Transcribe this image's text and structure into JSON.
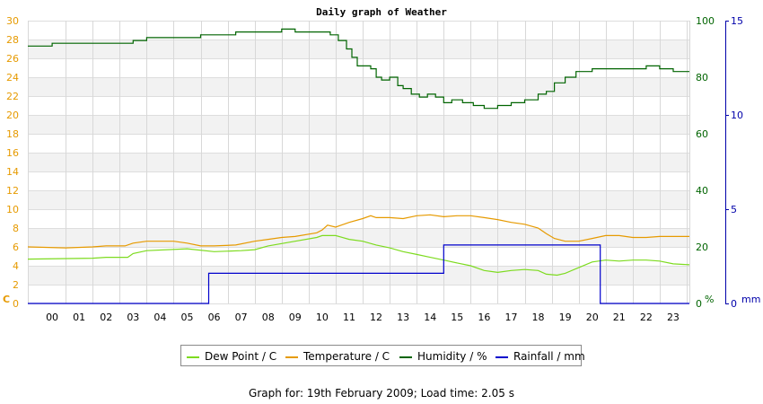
{
  "chart_data": {
    "type": "line",
    "title": "Daily graph of Weather",
    "x_axis": {
      "label": "",
      "range": [
        -0.9,
        23.6
      ],
      "ticks": [
        "00",
        "01",
        "02",
        "03",
        "04",
        "05",
        "06",
        "07",
        "08",
        "09",
        "10",
        "11",
        "12",
        "13",
        "14",
        "15",
        "16",
        "17",
        "18",
        "19",
        "20",
        "21",
        "22",
        "23"
      ]
    },
    "y_axes": [
      {
        "id": "temp",
        "position": "left-outer",
        "unit_label": "C",
        "range": [
          0,
          30
        ],
        "ticks": [
          "0",
          "2",
          "4",
          "6",
          "8",
          "10",
          "12",
          "14",
          "16",
          "18",
          "20",
          "22",
          "24",
          "26",
          "28",
          "30"
        ],
        "color": "#e69a00"
      },
      {
        "id": "humidity",
        "position": "right-inner",
        "unit_label": "%",
        "range": [
          0,
          100
        ],
        "ticks": [
          "0",
          "20",
          "40",
          "60",
          "80",
          "100"
        ],
        "color": "#006400"
      },
      {
        "id": "rain",
        "position": "right-outer",
        "unit_label": "mm",
        "range": [
          0,
          15
        ],
        "ticks": [
          "0",
          "5",
          "10",
          "15"
        ],
        "color": "#0000aa"
      }
    ],
    "grid": true,
    "legend_placement": "bottom",
    "series": [
      {
        "name": "Dew Point / C",
        "axis": "temp",
        "color": "#7ddb1f",
        "step": false,
        "x": [
          -0.9,
          1.5,
          2.0,
          2.8,
          3.0,
          3.5,
          5.0,
          6.0,
          7.0,
          7.5,
          8.0,
          9.0,
          9.8,
          10.0,
          10.5,
          11.0,
          11.5,
          12.0,
          12.5,
          13.0,
          13.5,
          14.0,
          14.5,
          15.0,
          15.5,
          16.0,
          16.5,
          17.0,
          17.5,
          18.0,
          18.3,
          18.7,
          19.0,
          19.5,
          20.0,
          20.5,
          21.0,
          21.5,
          22.0,
          22.5,
          23.0,
          23.6
        ],
        "y": [
          4.7,
          4.8,
          4.9,
          4.9,
          5.3,
          5.6,
          5.8,
          5.5,
          5.6,
          5.7,
          6.1,
          6.6,
          7.0,
          7.2,
          7.2,
          6.8,
          6.6,
          6.2,
          5.9,
          5.5,
          5.2,
          4.9,
          4.6,
          4.3,
          4.0,
          3.5,
          3.3,
          3.5,
          3.6,
          3.5,
          3.1,
          3.0,
          3.2,
          3.8,
          4.4,
          4.6,
          4.5,
          4.6,
          4.6,
          4.5,
          4.2,
          4.1
        ]
      },
      {
        "name": "Temperature / C",
        "axis": "temp",
        "color": "#e69a00",
        "step": false,
        "x": [
          -0.9,
          0.5,
          1.5,
          2.0,
          2.7,
          3.0,
          3.5,
          4.5,
          5.0,
          5.5,
          6.0,
          6.8,
          7.5,
          8.0,
          8.5,
          9.0,
          9.8,
          10.0,
          10.2,
          10.5,
          11.0,
          11.5,
          11.8,
          12.0,
          12.5,
          13.0,
          13.5,
          14.0,
          14.5,
          15.0,
          15.5,
          16.0,
          16.5,
          17.0,
          17.5,
          18.0,
          18.3,
          18.6,
          19.0,
          19.5,
          20.0,
          20.5,
          21.0,
          21.5,
          22.0,
          22.5,
          23.0,
          23.6
        ],
        "y": [
          6.0,
          5.9,
          6.0,
          6.1,
          6.1,
          6.4,
          6.6,
          6.6,
          6.4,
          6.1,
          6.1,
          6.2,
          6.6,
          6.8,
          7.0,
          7.1,
          7.5,
          7.8,
          8.3,
          8.1,
          8.6,
          9.0,
          9.3,
          9.1,
          9.1,
          9.0,
          9.3,
          9.4,
          9.2,
          9.3,
          9.3,
          9.1,
          8.9,
          8.6,
          8.4,
          8.0,
          7.4,
          6.9,
          6.6,
          6.6,
          6.9,
          7.2,
          7.2,
          7.0,
          7.0,
          7.1,
          7.1,
          7.1
        ]
      },
      {
        "name": "Humidity / %",
        "axis": "humidity",
        "color": "#006400",
        "step": true,
        "x": [
          -0.9,
          0.0,
          1.0,
          2.0,
          3.0,
          3.5,
          4.5,
          5.5,
          6.8,
          7.8,
          8.5,
          9.0,
          9.5,
          10.0,
          10.3,
          10.6,
          10.9,
          11.1,
          11.3,
          11.5,
          11.8,
          12.0,
          12.2,
          12.5,
          12.8,
          13.0,
          13.3,
          13.6,
          13.9,
          14.2,
          14.5,
          14.8,
          15.2,
          15.6,
          16.0,
          16.5,
          17.0,
          17.5,
          18.0,
          18.3,
          18.6,
          19.0,
          19.4,
          20.0,
          20.5,
          21.0,
          21.5,
          22.0,
          22.5,
          23.0,
          23.6
        ],
        "y": [
          91,
          92,
          92,
          92,
          93,
          94,
          94,
          95,
          96,
          96,
          97,
          96,
          96,
          96,
          95,
          93,
          90,
          87,
          84,
          84,
          83,
          80,
          79,
          80,
          77,
          76,
          74,
          73,
          74,
          73,
          71,
          72,
          71,
          70,
          69,
          70,
          71,
          72,
          74,
          75,
          78,
          80,
          82,
          83,
          83,
          83,
          83,
          84,
          83,
          82,
          82
        ]
      },
      {
        "name": "Rainfall / mm",
        "axis": "rain",
        "color": "#0000cc",
        "step": true,
        "x": [
          -0.9,
          5.8,
          14.5,
          20.3,
          23.6
        ],
        "y": [
          0,
          1.6,
          3.1,
          0,
          0
        ]
      }
    ]
  },
  "legend": [
    {
      "label": "Dew Point / C",
      "color": "#7ddb1f"
    },
    {
      "label": "Temperature / C",
      "color": "#e69a00"
    },
    {
      "label": "Humidity / %",
      "color": "#006400"
    },
    {
      "label": "Rainfall / mm",
      "color": "#0000cc"
    }
  ],
  "footer": "Graph for: 19th February 2009; Load time: 2.05 s"
}
